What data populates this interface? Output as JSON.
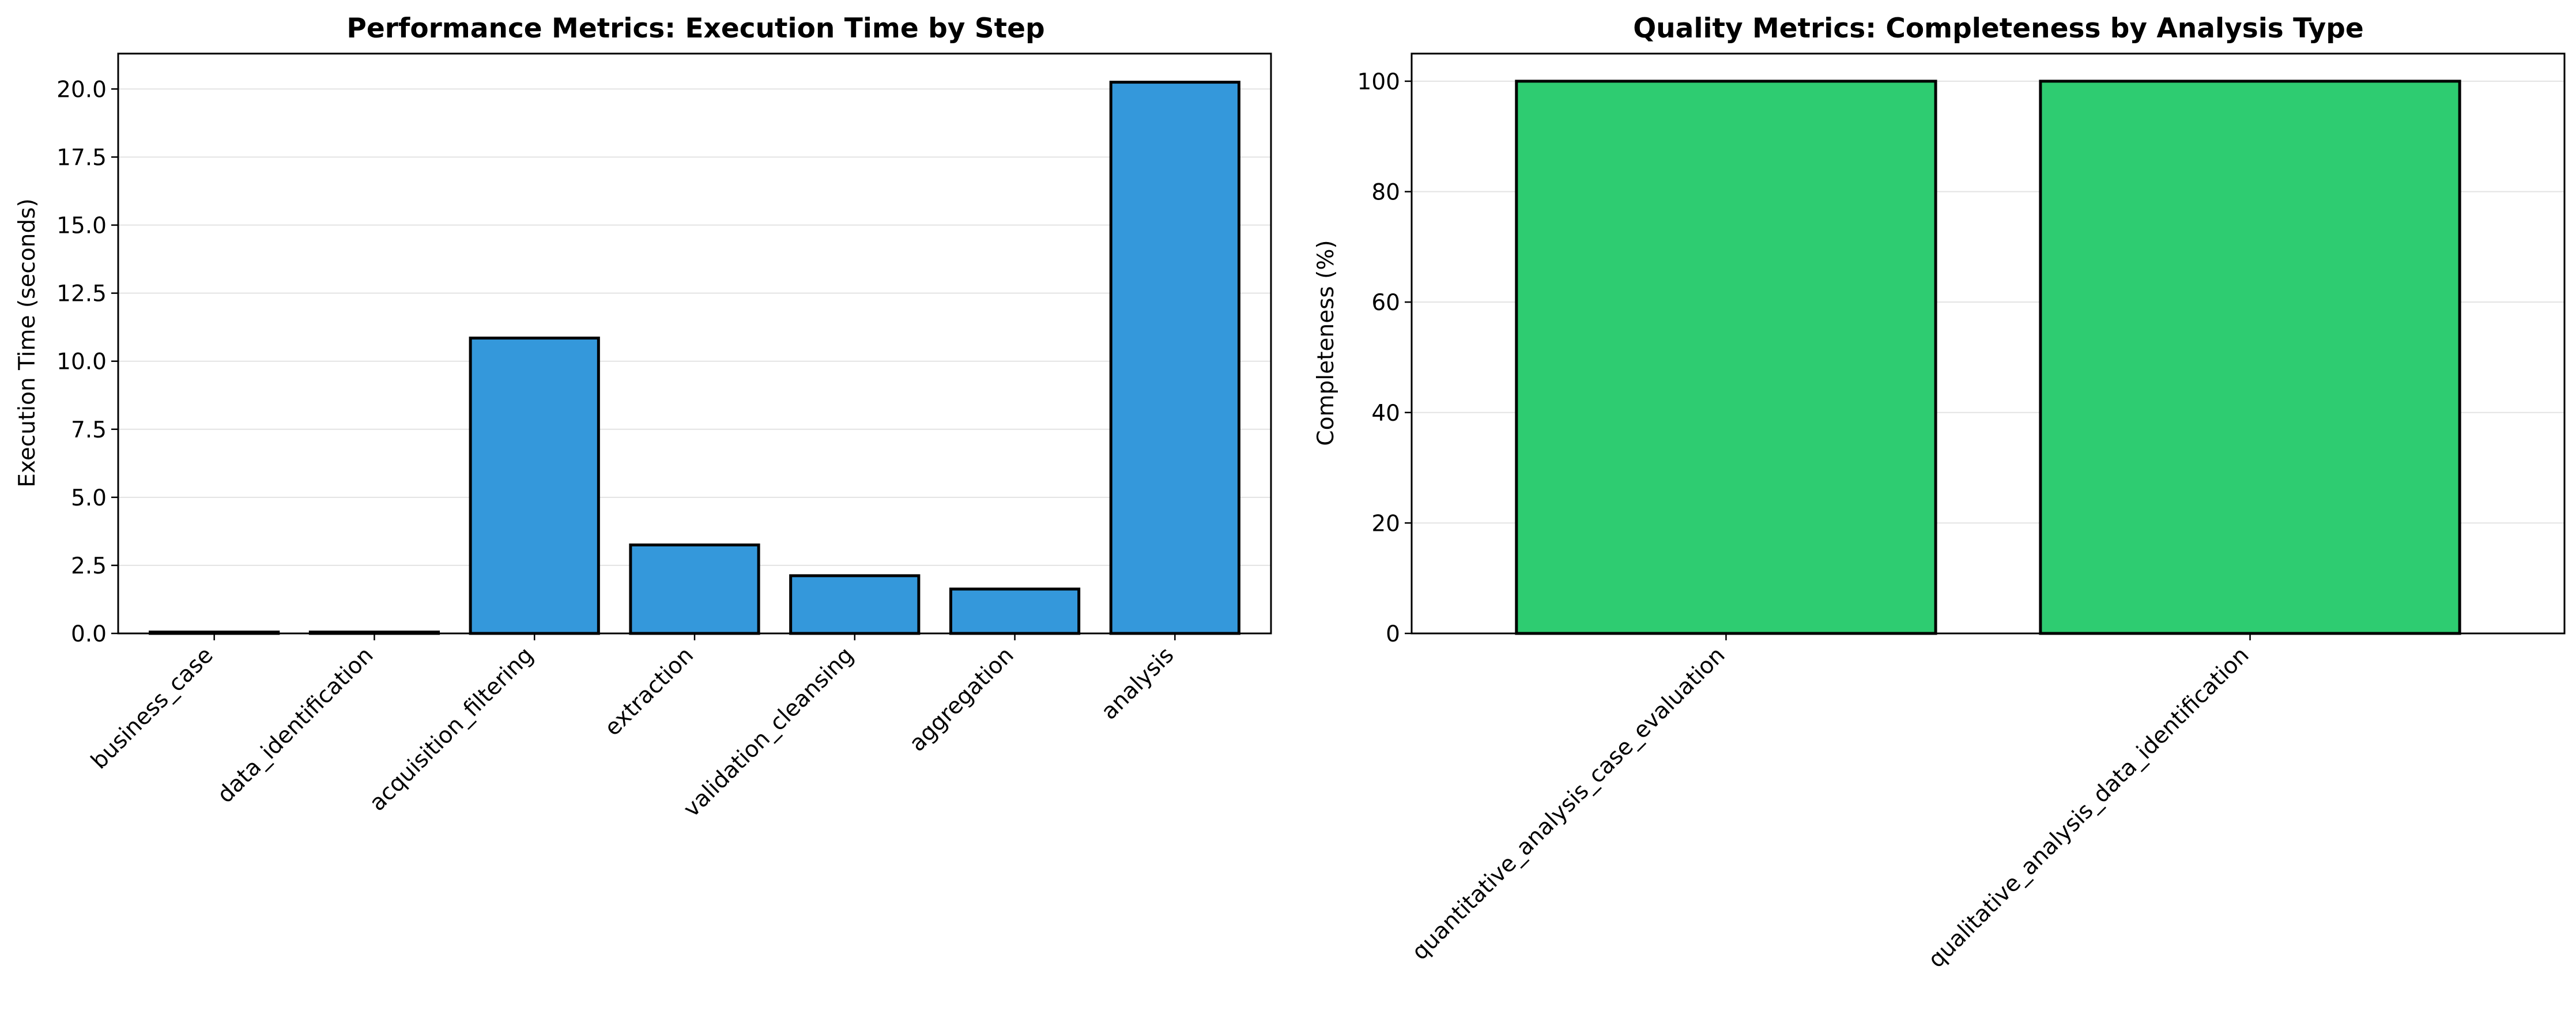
{
  "chart_data": [
    {
      "type": "bar",
      "title": "Performance Metrics: Execution Time by Step",
      "xlabel": "",
      "ylabel": "Execution Time (seconds)",
      "categories": [
        "business_case",
        "data_identification",
        "acquisition_filtering",
        "extraction",
        "validation_cleansing",
        "aggregation",
        "analysis"
      ],
      "values": [
        0.05,
        0.05,
        10.85,
        3.25,
        2.12,
        1.63,
        20.25
      ],
      "ylim": [
        0,
        21.3
      ],
      "yticks": [
        "0.0",
        "2.5",
        "5.0",
        "7.5",
        "10.0",
        "12.5",
        "15.0",
        "17.5",
        "20.0"
      ],
      "grid": "y",
      "bar_color": "#3498db"
    },
    {
      "type": "bar",
      "title": "Quality Metrics: Completeness by Analysis Type",
      "xlabel": "",
      "ylabel": "Completeness (%)",
      "categories": [
        "quantitative_analysis_case_evaluation",
        "qualitative_analysis_data_identification"
      ],
      "values": [
        100,
        100
      ],
      "ylim": [
        0,
        105
      ],
      "yticks": [
        "0",
        "20",
        "40",
        "60",
        "80",
        "100"
      ],
      "grid": "y",
      "bar_color": "#2ecc71"
    }
  ]
}
